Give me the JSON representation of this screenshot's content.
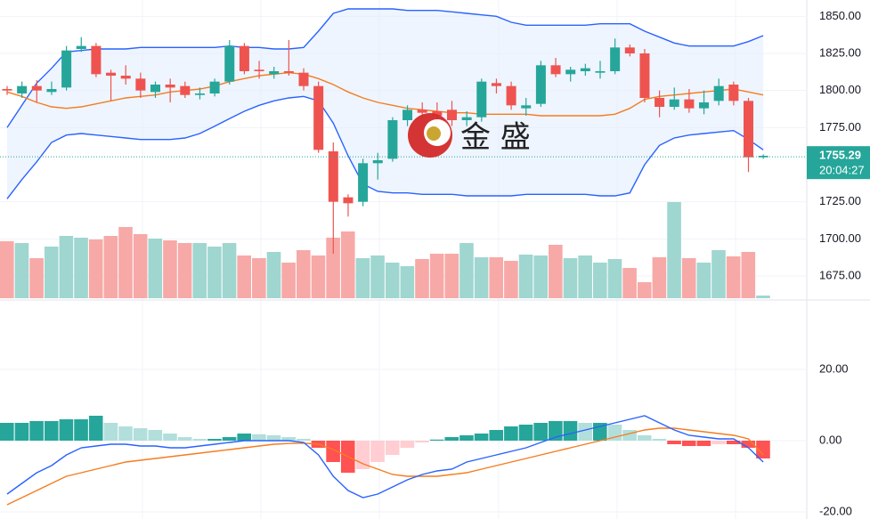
{
  "chart_data": [
    {
      "type": "candlestick",
      "open": [
        1801,
        1798,
        1803,
        1799,
        1802,
        1828,
        1830,
        1812,
        1810,
        1808,
        1799,
        1804,
        1803,
        1797,
        1798,
        1806,
        1830,
        1814,
        1811,
        1813,
        1812,
        1803,
        1759,
        1728,
        1725,
        1751,
        1754,
        1780,
        1787,
        1786,
        1787,
        1780,
        1782,
        1805,
        1803,
        1788,
        1791,
        1817,
        1811,
        1813,
        1812,
        1813,
        1829,
        1825,
        1795,
        1789,
        1794,
        1788,
        1793,
        1804,
        1793,
        1755
      ],
      "high": [
        1803,
        1806,
        1807,
        1806,
        1830,
        1836,
        1832,
        1814,
        1817,
        1812,
        1806,
        1808,
        1806,
        1802,
        1808,
        1834,
        1832,
        1820,
        1816,
        1834,
        1815,
        1806,
        1765,
        1730,
        1754,
        1758,
        1782,
        1790,
        1792,
        1792,
        1793,
        1786,
        1808,
        1808,
        1806,
        1795,
        1820,
        1822,
        1816,
        1818,
        1820,
        1835,
        1831,
        1828,
        1800,
        1802,
        1801,
        1800,
        1808,
        1806,
        1795,
        1757
      ],
      "low": [
        1797,
        1795,
        1792,
        1797,
        1800,
        1826,
        1809,
        1793,
        1804,
        1795,
        1795,
        1792,
        1795,
        1794,
        1796,
        1804,
        1811,
        1808,
        1808,
        1810,
        1800,
        1758,
        1690,
        1715,
        1722,
        1740,
        1752,
        1776,
        1781,
        1778,
        1776,
        1776,
        1779,
        1798,
        1787,
        1783,
        1789,
        1809,
        1806,
        1810,
        1808,
        1811,
        1823,
        1792,
        1782,
        1787,
        1785,
        1784,
        1790,
        1790,
        1745,
        1754
      ],
      "close": [
        1800,
        1803,
        1800,
        1801,
        1827,
        1830,
        1811,
        1810,
        1808,
        1800,
        1804,
        1802,
        1797,
        1798,
        1806,
        1830,
        1813,
        1813,
        1813,
        1812,
        1803,
        1760,
        1725,
        1724,
        1751,
        1753,
        1780,
        1787,
        1785,
        1783,
        1780,
        1782,
        1806,
        1803,
        1790,
        1790,
        1817,
        1811,
        1814,
        1815,
        1813,
        1829,
        1825,
        1795,
        1789,
        1794,
        1788,
        1792,
        1803,
        1793,
        1755,
        1756
      ],
      "up_color": "#26a69a",
      "down_color": "#ef5350",
      "upper_band": {
        "color": "#2962ff",
        "values": [
          1775,
          1790,
          1805,
          1815,
          1826,
          1827,
          1828,
          1828,
          1828,
          1829,
          1829,
          1829,
          1829,
          1829,
          1829,
          1830,
          1829,
          1829,
          1828,
          1828,
          1829,
          1840,
          1852,
          1855,
          1855,
          1855,
          1855,
          1854,
          1854,
          1854,
          1853,
          1852,
          1851,
          1850,
          1846,
          1844,
          1844,
          1844,
          1844,
          1844,
          1845,
          1845,
          1845,
          1840,
          1836,
          1832,
          1830,
          1830,
          1830,
          1830,
          1833,
          1837
        ]
      },
      "middle_band": {
        "color": "#f57c1f",
        "values": [
          1799,
          1796,
          1792,
          1789,
          1788,
          1789,
          1791,
          1793,
          1795,
          1796,
          1797,
          1799,
          1800,
          1801,
          1803,
          1806,
          1808,
          1810,
          1811,
          1812,
          1811,
          1808,
          1804,
          1799,
          1795,
          1792,
          1790,
          1788,
          1787,
          1786,
          1785,
          1785,
          1784,
          1784,
          1784,
          1784,
          1783,
          1783,
          1783,
          1783,
          1783,
          1784,
          1788,
          1794,
          1796,
          1797,
          1798,
          1799,
          1800,
          1801,
          1799,
          1797
        ]
      },
      "lower_band": {
        "color": "#2962ff",
        "values": [
          1727,
          1740,
          1752,
          1765,
          1770,
          1771,
          1770,
          1769,
          1768,
          1767,
          1767,
          1767,
          1768,
          1771,
          1776,
          1781,
          1786,
          1790,
          1793,
          1795,
          1796,
          1793,
          1778,
          1756,
          1737,
          1732,
          1731,
          1731,
          1730,
          1730,
          1730,
          1729,
          1729,
          1729,
          1729,
          1730,
          1730,
          1730,
          1730,
          1730,
          1729,
          1729,
          1731,
          1750,
          1763,
          1768,
          1770,
          1771,
          1772,
          1773,
          1767,
          1760
        ]
      },
      "band_fill": "#e3effd",
      "volume": {
        "up_color": "#9fd6d0",
        "down_color": "#f7a9a7",
        "values": [
          64,
          62,
          45,
          58,
          70,
          68,
          66,
          70,
          80,
          72,
          67,
          65,
          62,
          62,
          58,
          62,
          48,
          45,
          52,
          40,
          54,
          48,
          68,
          75,
          45,
          48,
          40,
          36,
          44,
          50,
          50,
          62,
          46,
          46,
          42,
          49,
          48,
          60,
          45,
          48,
          40,
          44,
          34,
          18,
          46,
          108,
          45,
          40,
          54,
          47,
          52,
          3
        ]
      },
      "ylim": [
        1660,
        1861
      ],
      "yticks": [
        {
          "value": 1850,
          "label": "1850.00"
        },
        {
          "value": 1825,
          "label": "1825.00"
        },
        {
          "value": 1800,
          "label": "1800.00"
        },
        {
          "value": 1775,
          "label": "1775.00"
        },
        {
          "value": 1725,
          "label": "1725.00"
        },
        {
          "value": 1700,
          "label": "1700.00"
        },
        {
          "value": 1675,
          "label": "1675.00"
        }
      ],
      "last_price": 1755.29,
      "last_time": "20:04:27",
      "last_color": "#26a69a",
      "watermark": "金 盛"
    },
    {
      "type": "macd",
      "histogram": [
        5,
        5,
        5.5,
        5.5,
        6,
        6,
        7,
        5,
        4,
        3.5,
        3,
        2,
        1,
        0.5,
        0.5,
        1,
        2,
        1.8,
        1.5,
        1,
        0.5,
        -2,
        -6,
        -9,
        -8,
        -6,
        -4,
        -2,
        -0.5,
        0.3,
        1,
        1.5,
        2,
        3,
        4,
        4.5,
        5,
        5.5,
        5.5,
        5,
        5,
        4.5,
        3,
        1.5,
        0.5,
        -1,
        -1.5,
        -1.5,
        -1,
        -1,
        -2,
        -5
      ],
      "colors": {
        "pos_up": "#26a69a",
        "pos_down": "#b2dfdb",
        "neg_down": "#ff5252",
        "neg_up": "#ffcdd2"
      },
      "macd": {
        "color": "#2962ff",
        "values": [
          -15,
          -12,
          -9,
          -7,
          -4,
          -2,
          -1.5,
          -1,
          -1,
          -1.5,
          -1.5,
          -2,
          -2,
          -1.5,
          -1,
          -0.5,
          0,
          0,
          0,
          0,
          -0.5,
          -4,
          -10,
          -14,
          -16,
          -15,
          -13,
          -11,
          -9.5,
          -8.5,
          -8,
          -6,
          -5,
          -4,
          -3,
          -2,
          -0.5,
          1,
          2,
          3,
          4,
          5,
          6,
          7,
          5,
          3,
          1.5,
          1,
          0.5,
          0.5,
          -2,
          -6
        ]
      },
      "signal": {
        "color": "#f57c1f",
        "values": [
          -18,
          -16,
          -14,
          -12,
          -10,
          -9,
          -8,
          -7,
          -6,
          -5.5,
          -5,
          -4.5,
          -4,
          -3.5,
          -3,
          -2.5,
          -2,
          -1.5,
          -1,
          -0.8,
          -0.7,
          -1,
          -2.5,
          -4.5,
          -6.5,
          -8,
          -9.5,
          -10,
          -10,
          -10,
          -9.5,
          -9,
          -8,
          -7,
          -6,
          -5,
          -4,
          -3,
          -2,
          -1,
          0,
          1,
          2,
          3,
          3.5,
          3.5,
          3,
          2.5,
          2,
          1.5,
          0.5,
          -4
        ]
      },
      "ylim": [
        -22,
        39.25
      ],
      "yticks": [
        {
          "value": 20,
          "label": "20.00"
        },
        {
          "value": 0,
          "label": "0.00"
        },
        {
          "value": -20,
          "label": "-20.00"
        }
      ]
    }
  ]
}
